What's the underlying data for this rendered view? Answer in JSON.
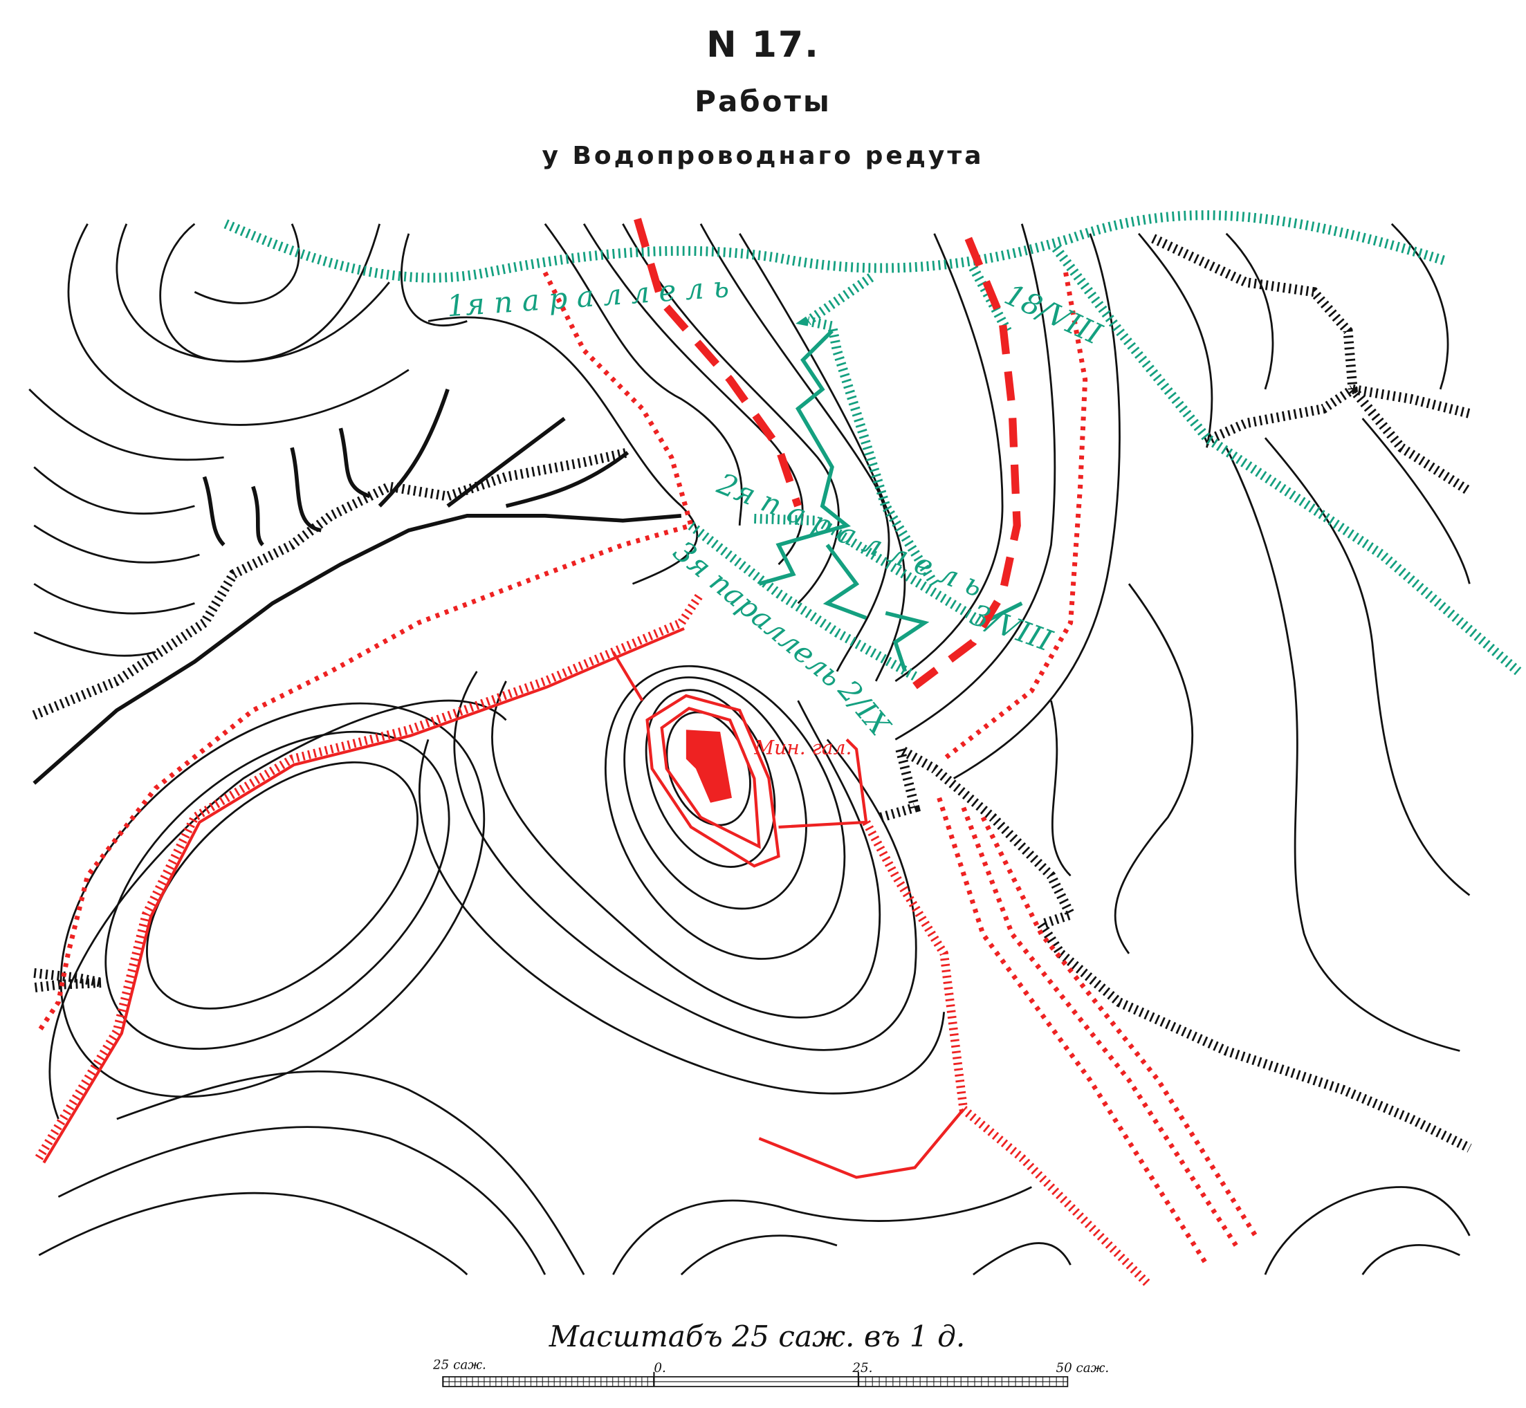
{
  "map_number": "N 17.",
  "title": "Работы",
  "subtitle": "у Водопроводнаго редута",
  "labels": {
    "parallel_1": "1я   п  а  р  а  л  л  е     л  ь",
    "parallel_1_date": "18/VIII",
    "parallel_2": "2я п а р а л л е л ь",
    "parallel_2_date": "3/VIII",
    "parallel_3": "3я параллель",
    "parallel_3_date": "2/IX",
    "mine_gallery": "Мин. гал."
  },
  "scale": {
    "caption": "Масштабъ 25 саж. въ 1 д.",
    "ticks": [
      "25 саж.",
      "0.",
      "25.",
      "50 саж."
    ]
  },
  "colors": {
    "russian_works": "#ee2222",
    "siege_works": "#14a080",
    "terrain": "#111111"
  }
}
